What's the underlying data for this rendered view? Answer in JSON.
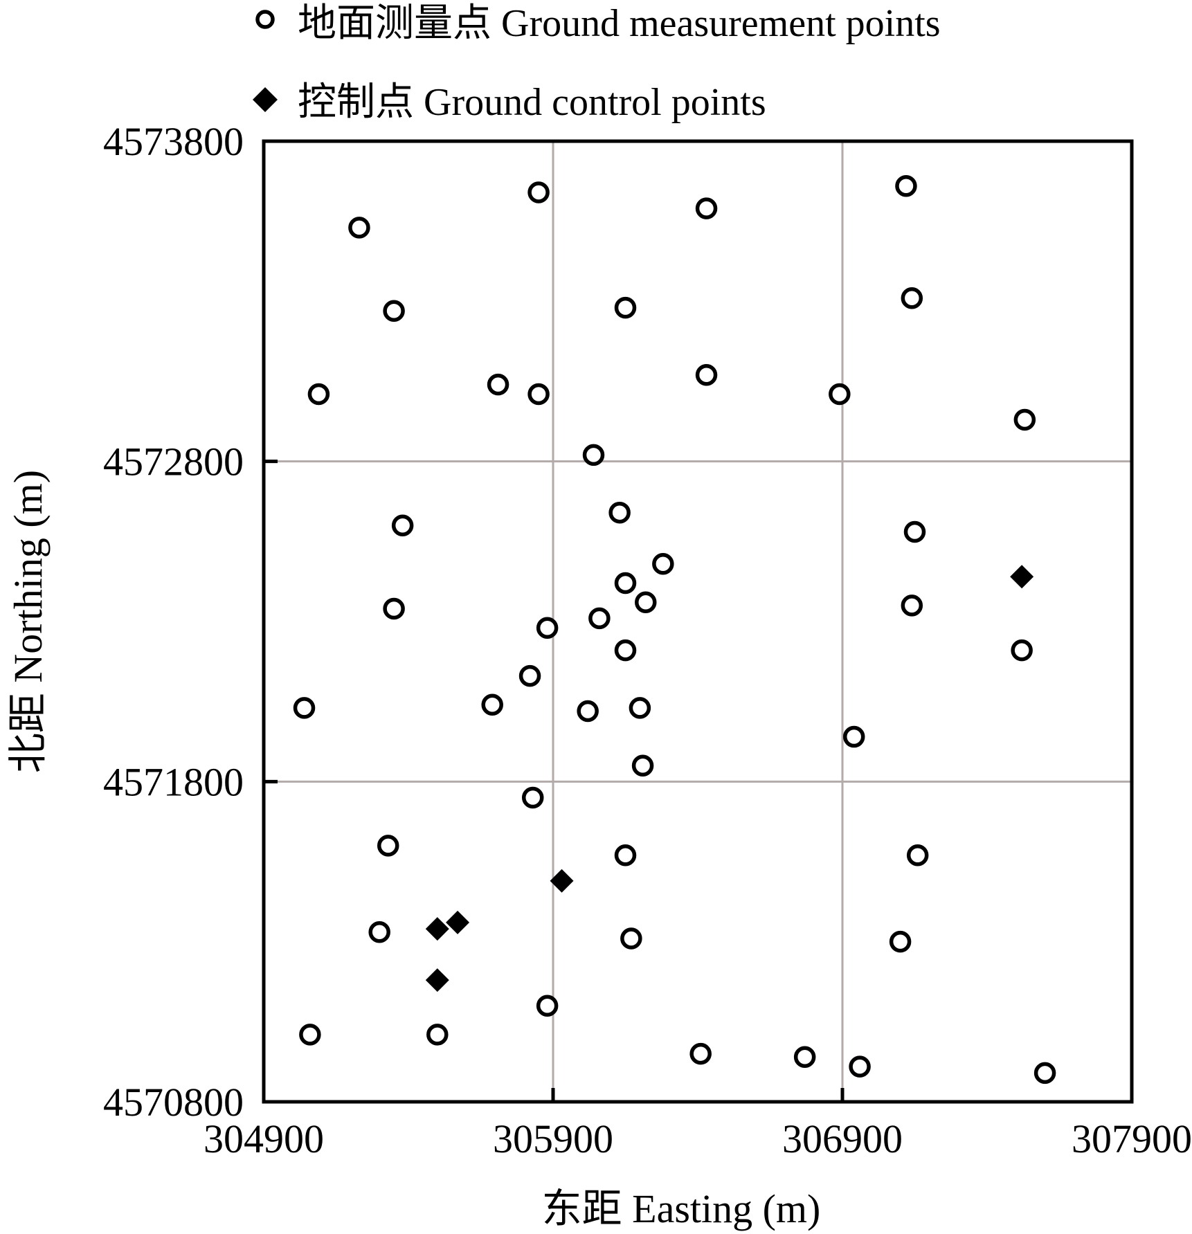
{
  "chart_data": {
    "type": "scatter",
    "title": "",
    "xlabel": "东距 Easting (m)",
    "ylabel": "北距 Northing (m)",
    "xlim": [
      304900,
      307900
    ],
    "ylim": [
      4570800,
      4573800
    ],
    "x_ticks": [
      304900,
      305900,
      306900,
      307900
    ],
    "y_ticks": [
      4570800,
      4571800,
      4572800,
      4573800
    ],
    "x_tick_labels": [
      "304900",
      "305900",
      "306900",
      "307900"
    ],
    "y_tick_labels": [
      "4570800",
      "4571800",
      "4572800",
      "4573800"
    ],
    "grid": true,
    "legend_position": "top",
    "colors": {
      "grid": "#b3aaaa",
      "frame": "#000000",
      "points": "#000000",
      "background": "#ffffff"
    },
    "series": [
      {
        "name": "地面测量点 Ground measurement points",
        "marker": "open-circle",
        "points": [
          [
            305230,
            4573530
          ],
          [
            305850,
            4573640
          ],
          [
            306430,
            4573590
          ],
          [
            307120,
            4573660
          ],
          [
            305350,
            4573270
          ],
          [
            306150,
            4573280
          ],
          [
            307140,
            4573310
          ],
          [
            305090,
            4573010
          ],
          [
            305710,
            4573040
          ],
          [
            305850,
            4573010
          ],
          [
            306430,
            4573070
          ],
          [
            306040,
            4572820
          ],
          [
            306890,
            4573010
          ],
          [
            307530,
            4572930
          ],
          [
            305380,
            4572600
          ],
          [
            306130,
            4572640
          ],
          [
            307150,
            4572580
          ],
          [
            306280,
            4572480
          ],
          [
            306150,
            4572420
          ],
          [
            306220,
            4572360
          ],
          [
            305350,
            4572340
          ],
          [
            306060,
            4572310
          ],
          [
            305880,
            4572280
          ],
          [
            307140,
            4572350
          ],
          [
            306150,
            4572210
          ],
          [
            307520,
            4572210
          ],
          [
            305820,
            4572130
          ],
          [
            305040,
            4572030
          ],
          [
            305690,
            4572040
          ],
          [
            306020,
            4572020
          ],
          [
            306200,
            4572030
          ],
          [
            306940,
            4571940
          ],
          [
            306210,
            4571850
          ],
          [
            305830,
            4571750
          ],
          [
            305330,
            4571600
          ],
          [
            306150,
            4571570
          ],
          [
            307160,
            4571570
          ],
          [
            305300,
            4571330
          ],
          [
            306170,
            4571310
          ],
          [
            307100,
            4571300
          ],
          [
            305880,
            4571100
          ],
          [
            305060,
            4571010
          ],
          [
            305500,
            4571010
          ],
          [
            306410,
            4570950
          ],
          [
            306770,
            4570940
          ],
          [
            306960,
            4570910
          ],
          [
            307600,
            4570890
          ]
        ]
      },
      {
        "name": "控制点 Ground control points",
        "marker": "filled-diamond",
        "points": [
          [
            307520,
            4572440
          ],
          [
            305930,
            4571490
          ],
          [
            305570,
            4571360
          ],
          [
            305500,
            4571340
          ],
          [
            305500,
            4571180
          ]
        ]
      }
    ]
  }
}
